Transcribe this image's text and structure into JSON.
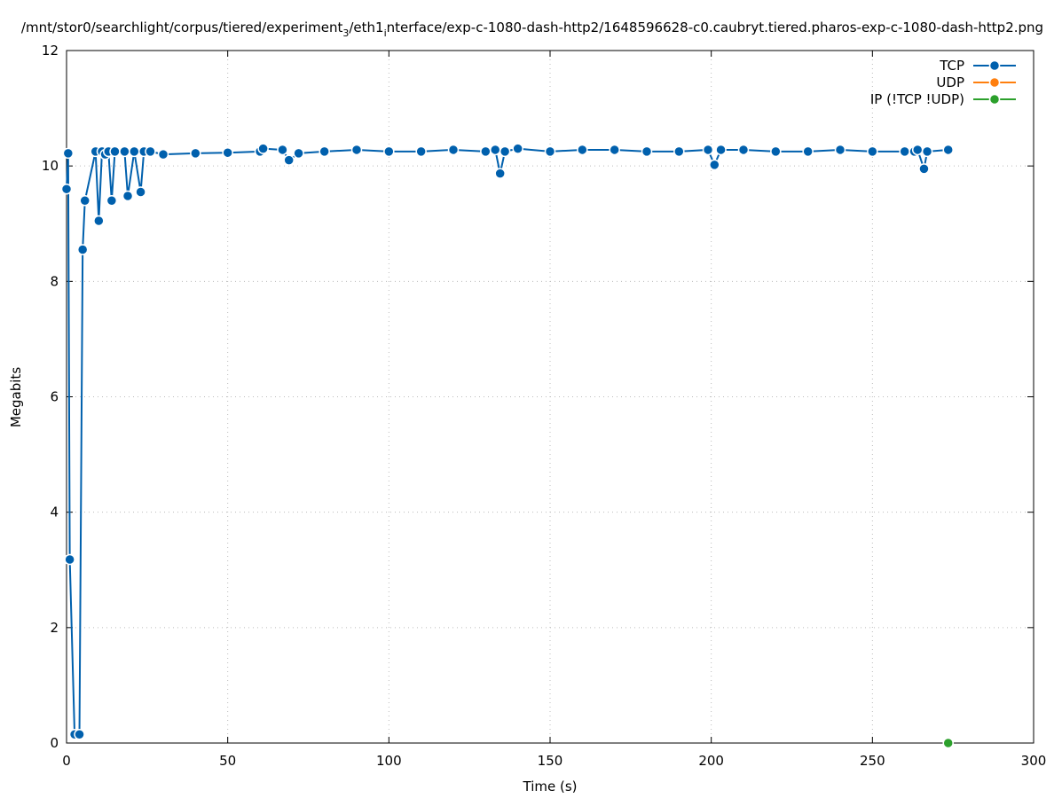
{
  "chart_data": {
    "type": "line",
    "title": [
      "/mnt/stor0/searchlight/corpus/tiered/experiment",
      "3",
      "/eth1",
      "i",
      "nterface/exp-c-1080-dash-http2/1648596628-c0.caubryt.tiered.pharos-exp-c-1080-dash-http2.png"
    ],
    "x_label": "Time (s)",
    "y_label": "Megabits",
    "xlim": [
      0,
      300
    ],
    "xticks": [
      0,
      50,
      100,
      150,
      200,
      250,
      300
    ],
    "ylim": [
      0,
      12
    ],
    "yticks": [
      0,
      2,
      4,
      6,
      8,
      10,
      12
    ],
    "grid": true,
    "legend": "top-right",
    "series": [
      {
        "name": "TCP",
        "color": "#0060ad",
        "x": [
          0,
          0.5,
          1,
          2.5,
          4,
          5,
          5.7,
          9,
          10,
          11,
          12,
          13,
          14,
          15,
          18,
          19,
          21,
          23,
          24,
          26,
          30,
          40,
          50,
          60,
          61,
          67,
          69,
          72,
          80,
          90,
          100,
          110,
          120,
          130,
          133,
          134.5,
          136,
          140,
          150,
          160,
          170,
          180,
          190,
          199,
          201,
          203,
          210,
          220,
          230,
          240,
          250,
          260,
          263,
          264,
          266,
          267,
          273.5
        ],
        "values": [
          9.6,
          10.22,
          3.18,
          0.15,
          0.15,
          8.55,
          9.4,
          10.25,
          9.05,
          10.25,
          10.2,
          10.25,
          9.4,
          10.25,
          10.25,
          9.48,
          10.25,
          9.55,
          10.25,
          10.25,
          10.2,
          10.22,
          10.23,
          10.25,
          10.3,
          10.28,
          10.1,
          10.22,
          10.25,
          10.28,
          10.25,
          10.25,
          10.28,
          10.25,
          10.28,
          9.87,
          10.25,
          10.3,
          10.25,
          10.28,
          10.28,
          10.25,
          10.25,
          10.28,
          10.02,
          10.28,
          10.28,
          10.25,
          10.25,
          10.28,
          10.25,
          10.25,
          10.25,
          10.28,
          9.95,
          10.25,
          10.28
        ]
      },
      {
        "name": "UDP",
        "color": "#ff7f0e",
        "x": [],
        "values": []
      },
      {
        "name": "IP (!TCP  !UDP)",
        "color": "#2ca02c",
        "x": [
          273.5
        ],
        "values": [
          0
        ]
      }
    ]
  }
}
